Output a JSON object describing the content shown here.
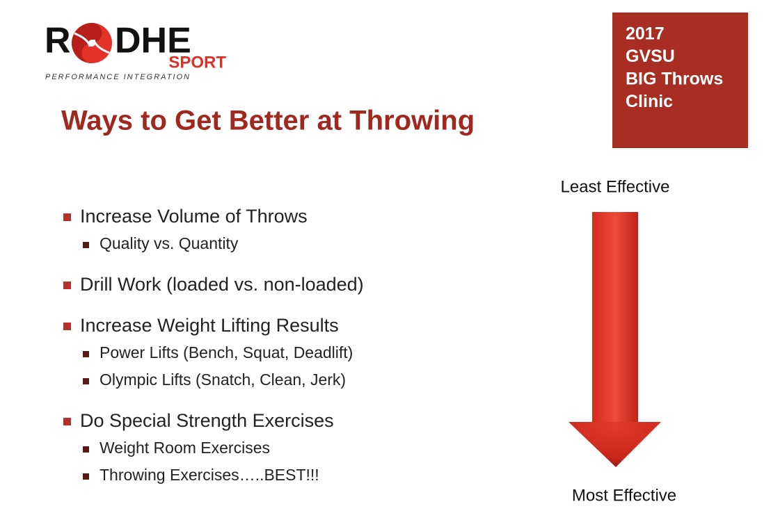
{
  "logo": {
    "left": "R",
    "right": "DHE",
    "brand": "SPORT",
    "tagline": "PERFORMANCE INTEGRATION"
  },
  "badge": {
    "lines": [
      "2017",
      "GVSU",
      "BIG Throws",
      "Clinic"
    ]
  },
  "title": "Ways to Get Better at Throwing",
  "bullets": [
    {
      "text": "Increase Volume of Throws",
      "sub": [
        "Quality vs. Quantity"
      ]
    },
    {
      "text": "Drill Work (loaded vs. non-loaded)",
      "sub": []
    },
    {
      "text": "Increase Weight Lifting Results",
      "sub": [
        "Power Lifts (Bench, Squat, Deadlift)",
        "Olympic Lifts (Snatch, Clean, Jerk)"
      ]
    },
    {
      "text": "Do Special Strength Exercises",
      "sub": [
        "Weight Room Exercises",
        "Throwing Exercises…..BEST!!!"
      ]
    }
  ],
  "arrow": {
    "top": "Least Effective",
    "bottom": "Most Effective"
  }
}
